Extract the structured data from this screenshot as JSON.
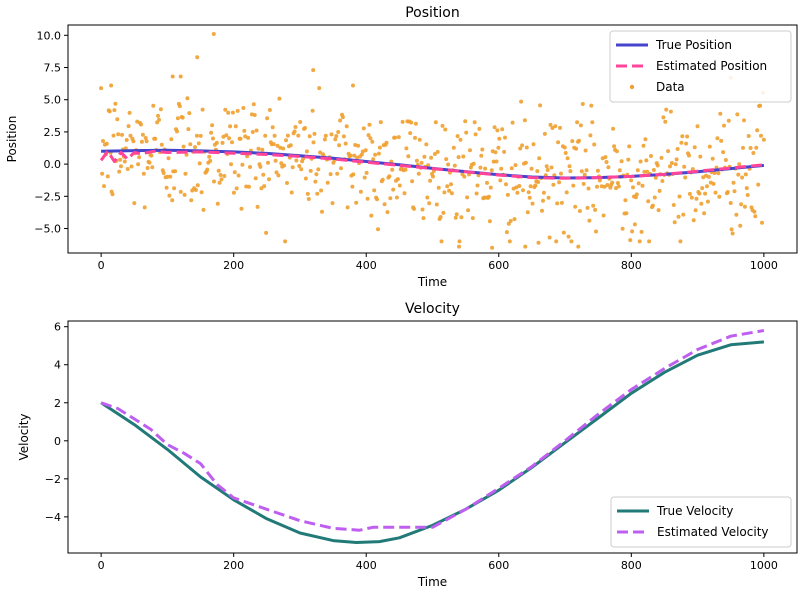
{
  "chart_data": [
    {
      "type": "line",
      "title": "Position",
      "xlabel": "Time",
      "ylabel": "Position",
      "xlim": [
        -50,
        1050
      ],
      "ylim": [
        -6.9,
        10.8
      ],
      "xticks": [
        0,
        200,
        400,
        600,
        800,
        1000
      ],
      "yticks": [
        -5.0,
        -2.5,
        0.0,
        2.5,
        5.0,
        7.5,
        10.0
      ],
      "ytick_labels": [
        "−5.0",
        "−2.5",
        "0.0",
        "2.5",
        "5.0",
        "7.5",
        "10.0"
      ],
      "grid": false,
      "legend": "top-right",
      "series": [
        {
          "name": "True Position",
          "kind": "line",
          "color": "#4444cc",
          "x": [
            0,
            50,
            100,
            150,
            200,
            250,
            300,
            350,
            400,
            450,
            500,
            550,
            600,
            650,
            700,
            750,
            800,
            850,
            900,
            950,
            1000
          ],
          "y": [
            1.0,
            1.05,
            1.07,
            1.03,
            0.95,
            0.83,
            0.65,
            0.45,
            0.2,
            -0.05,
            -0.33,
            -0.58,
            -0.82,
            -1.0,
            -1.08,
            -1.05,
            -0.95,
            -0.8,
            -0.6,
            -0.35,
            -0.1
          ]
        },
        {
          "name": "Estimated Position",
          "kind": "dashed",
          "color": "#ff4499",
          "x": [
            0,
            10,
            20,
            30,
            40,
            50,
            60,
            80,
            100,
            150,
            200,
            250,
            300,
            350,
            400,
            450,
            500,
            550,
            600,
            650,
            700,
            750,
            800,
            850,
            900,
            950,
            1000
          ],
          "y": [
            0.3,
            1.0,
            0.2,
            0.9,
            0.4,
            0.9,
            0.8,
            1.0,
            0.9,
            0.95,
            0.85,
            0.75,
            0.6,
            0.4,
            0.15,
            -0.1,
            -0.35,
            -0.6,
            -0.85,
            -1.05,
            -1.1,
            -1.05,
            -0.95,
            -0.8,
            -0.55,
            -0.3,
            -0.05
          ]
        },
        {
          "name": "Data",
          "kind": "scatter",
          "color": "#f0a030",
          "noise_sd": 2.4,
          "n": 700,
          "outliers": [
            [
              170,
              10.1
            ],
            [
              145,
              8.3
            ],
            [
              320,
              7.3
            ],
            [
              108,
              6.8
            ],
            [
              120,
              6.8
            ],
            [
              950,
              6.7
            ],
            [
              15,
              6.1
            ],
            [
              380,
              6.1
            ],
            [
              540,
              -6.4
            ],
            [
              590,
              -6.5
            ],
            [
              640,
              -6.4
            ],
            [
              720,
              -6.4
            ],
            [
              660,
              -6.1
            ]
          ]
        }
      ]
    },
    {
      "type": "line",
      "title": "Velocity",
      "xlabel": "Time",
      "ylabel": "Velocity",
      "xlim": [
        -50,
        1050
      ],
      "ylim": [
        -5.9,
        6.3
      ],
      "xticks": [
        0,
        200,
        400,
        600,
        800,
        1000
      ],
      "yticks": [
        -4,
        -2,
        0,
        2,
        4,
        6
      ],
      "ytick_labels": [
        "−4",
        "−2",
        "0",
        "2",
        "4",
        "6"
      ],
      "grid": false,
      "legend": "bottom-right",
      "series": [
        {
          "name": "True Velocity",
          "kind": "line",
          "color": "#217a78",
          "x": [
            0,
            50,
            100,
            150,
            200,
            250,
            300,
            350,
            385,
            420,
            450,
            500,
            550,
            600,
            650,
            700,
            750,
            800,
            850,
            900,
            950,
            1000
          ],
          "y": [
            2.0,
            0.85,
            -0.45,
            -1.9,
            -3.1,
            -4.1,
            -4.85,
            -5.25,
            -5.35,
            -5.3,
            -5.1,
            -4.45,
            -3.6,
            -2.6,
            -1.4,
            -0.1,
            1.2,
            2.5,
            3.6,
            4.5,
            5.05,
            5.2
          ]
        },
        {
          "name": "Estimated Velocity",
          "kind": "dashed",
          "color": "#bf5fef",
          "x": [
            0,
            25,
            50,
            75,
            100,
            125,
            150,
            175,
            200,
            250,
            300,
            350,
            390,
            410,
            450,
            500,
            550,
            600,
            650,
            700,
            750,
            800,
            850,
            900,
            950,
            1000
          ],
          "y": [
            2.0,
            1.7,
            1.15,
            0.6,
            -0.2,
            -0.65,
            -1.2,
            -2.3,
            -3.0,
            -3.6,
            -4.2,
            -4.6,
            -4.7,
            -4.55,
            -4.55,
            -4.55,
            -3.6,
            -2.5,
            -1.35,
            0.0,
            1.4,
            2.7,
            3.8,
            4.8,
            5.5,
            5.8
          ]
        }
      ]
    }
  ]
}
